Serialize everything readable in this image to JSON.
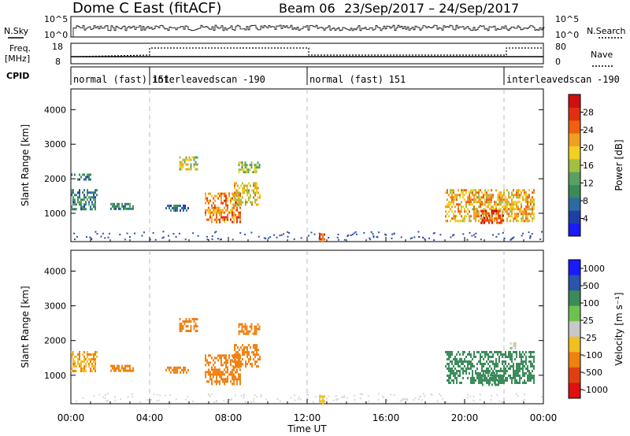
{
  "header": {
    "title": "Dome C East (fitACF)",
    "beam": "Beam 06",
    "dates": "23/Sep/2017 – 24/Sep/2017"
  },
  "top_panels": {
    "nsky_label": "N.Sky",
    "nsky_ticks": [
      "10^5",
      "10^0"
    ],
    "nsearch_ticks": [
      "10^5",
      "10^0"
    ],
    "nsearch_label": "N.Search",
    "freq_label_1": "Freq.",
    "freq_label_2": "[MHz]",
    "freq_ticks": [
      "18",
      "8"
    ],
    "nave_ticks": [
      "80",
      "0"
    ],
    "nave_label": "Nave",
    "cpid_label": "CPID",
    "cpid_segments": [
      {
        "label": "normal (fast)",
        "id": "151",
        "start": 0.0,
        "end": 4.0
      },
      {
        "label": "interleavedscan",
        "id": "-190",
        "start": 4.0,
        "end": 12.0
      },
      {
        "label": "normal (fast)",
        "id": "151",
        "start": 12.0,
        "end": 22.0
      },
      {
        "label": "interleavedscan",
        "id": "-190",
        "start": 22.0,
        "end": 24.0
      }
    ]
  },
  "axes": {
    "ylabel": "Slant Range [km]",
    "xlabel": "Time UT",
    "xticks": [
      "00:00",
      "04:00",
      "08:00",
      "12:00",
      "16:00",
      "20:00",
      "00:00"
    ],
    "yticks": [
      "1000",
      "2000",
      "3000",
      "4000"
    ]
  },
  "colorbars": {
    "power": {
      "label": "Power [dB]",
      "ticks": [
        "4",
        "8",
        "12",
        "16",
        "20",
        "24",
        "28"
      ],
      "colors": [
        "#1a1aff",
        "#1e3fa8",
        "#2e6aa0",
        "#3a8a5a",
        "#5aa060",
        "#a0c040",
        "#f0d020",
        "#f0a020",
        "#f06010",
        "#e03010",
        "#d01010"
      ]
    },
    "velocity": {
      "label": "Velocity [m s⁻¹]",
      "ticks": [
        "1000",
        "500",
        "100",
        "25",
        "-25",
        "-100",
        "-500",
        "-1000"
      ],
      "colors": [
        "#1a1aff",
        "#2a55aa",
        "#3a8a5a",
        "#70c050",
        "#c8c8c8",
        "#f0c020",
        "#f08010",
        "#e04010",
        "#e01010"
      ]
    }
  },
  "chart_data": [
    {
      "type": "heatmap",
      "name": "power",
      "xlabel": "Time UT",
      "ylabel": "Slant Range [km]",
      "x_range_hours": [
        0,
        24
      ],
      "ylim": [
        180,
        4600
      ],
      "colorbar_label": "Power [dB]",
      "patches": [
        {
          "t0": 0.0,
          "t1": 1.3,
          "r0": 1150,
          "r1": 1700,
          "value": 8
        },
        {
          "t0": 2.0,
          "t1": 3.2,
          "r0": 1100,
          "r1": 1300,
          "value": 8
        },
        {
          "t0": 4.8,
          "t1": 6.0,
          "r0": 1050,
          "r1": 1250,
          "value": 8
        },
        {
          "t0": 5.5,
          "t1": 6.4,
          "r0": 2300,
          "r1": 2650,
          "value": 16
        },
        {
          "t0": 6.8,
          "t1": 8.6,
          "r0": 750,
          "r1": 1600,
          "value": 22
        },
        {
          "t0": 8.2,
          "t1": 9.6,
          "r0": 1250,
          "r1": 1900,
          "value": 18
        },
        {
          "t0": 8.5,
          "t1": 9.6,
          "r0": 2200,
          "r1": 2500,
          "value": 14
        },
        {
          "t0": 0.0,
          "t1": 1.0,
          "r0": 1950,
          "r1": 2150,
          "value": 8
        },
        {
          "t0": 19.0,
          "t1": 23.5,
          "r0": 800,
          "r1": 1700,
          "value": 20
        },
        {
          "t0": 20.8,
          "t1": 22.0,
          "r0": 700,
          "r1": 1100,
          "value": 26
        },
        {
          "t0": 12.6,
          "t1": 12.9,
          "r0": 200,
          "r1": 420,
          "value": 24
        }
      ]
    },
    {
      "type": "heatmap",
      "name": "velocity",
      "xlabel": "Time UT",
      "ylabel": "Slant Range [km]",
      "x_range_hours": [
        0,
        24
      ],
      "ylim": [
        180,
        4600
      ],
      "colorbar_label": "Velocity [m s⁻¹]",
      "patches": [
        {
          "t0": 0.0,
          "t1": 1.3,
          "r0": 1150,
          "r1": 1700,
          "value": -100
        },
        {
          "t0": 2.0,
          "t1": 3.2,
          "r0": 1100,
          "r1": 1300,
          "value": -300
        },
        {
          "t0": 4.8,
          "t1": 6.0,
          "r0": 1050,
          "r1": 1250,
          "value": -300
        },
        {
          "t0": 5.5,
          "t1": 6.4,
          "r0": 2300,
          "r1": 2650,
          "value": -300
        },
        {
          "t0": 6.8,
          "t1": 8.6,
          "r0": 750,
          "r1": 1600,
          "value": -300
        },
        {
          "t0": 8.2,
          "t1": 9.6,
          "r0": 1250,
          "r1": 1900,
          "value": -300
        },
        {
          "t0": 8.5,
          "t1": 9.6,
          "r0": 2200,
          "r1": 2500,
          "value": -300
        },
        {
          "t0": 19.0,
          "t1": 23.5,
          "r0": 800,
          "r1": 1700,
          "value": 300
        },
        {
          "t0": 20.8,
          "t1": 22.0,
          "r0": 700,
          "r1": 1100,
          "value": 300
        },
        {
          "t0": 22.3,
          "t1": 22.6,
          "r0": 1800,
          "r1": 1950,
          "value": 0
        },
        {
          "t0": 12.6,
          "t1": 12.9,
          "r0": 200,
          "r1": 420,
          "value": -60
        }
      ]
    }
  ]
}
